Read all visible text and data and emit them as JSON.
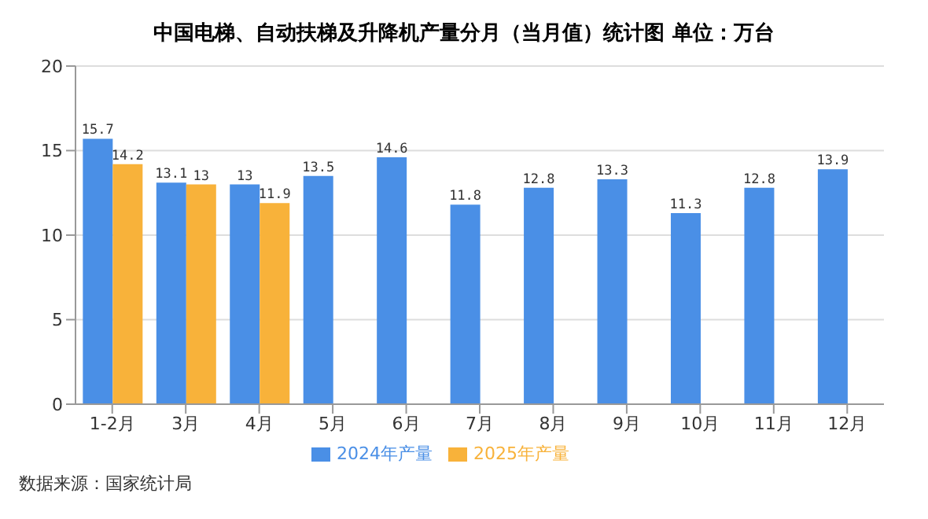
{
  "chart_data": {
    "type": "bar",
    "title": "中国电梯、自动扶梯及升降机产量分月（当月值）统计图 单位：万台",
    "categories": [
      "1-2月",
      "3月",
      "4月",
      "5月",
      "6月",
      "7月",
      "8月",
      "9月",
      "10月",
      "11月",
      "12月"
    ],
    "series": [
      {
        "name": "2024年产量",
        "color": "#4a8fe6",
        "values": [
          15.7,
          13.1,
          13,
          13.5,
          14.6,
          11.8,
          12.8,
          13.3,
          11.3,
          12.8,
          13.9
        ]
      },
      {
        "name": "2025年产量",
        "color": "#f8b23a",
        "values": [
          14.2,
          13,
          11.9,
          null,
          null,
          null,
          null,
          null,
          null,
          null,
          null
        ]
      }
    ],
    "ylim": [
      0,
      20
    ],
    "yticks": [
      0,
      5,
      10,
      15,
      20
    ],
    "grid": "y",
    "legend": "bottom",
    "data_labels": true,
    "annotations": [
      "数据来源：国家统计局"
    ]
  }
}
